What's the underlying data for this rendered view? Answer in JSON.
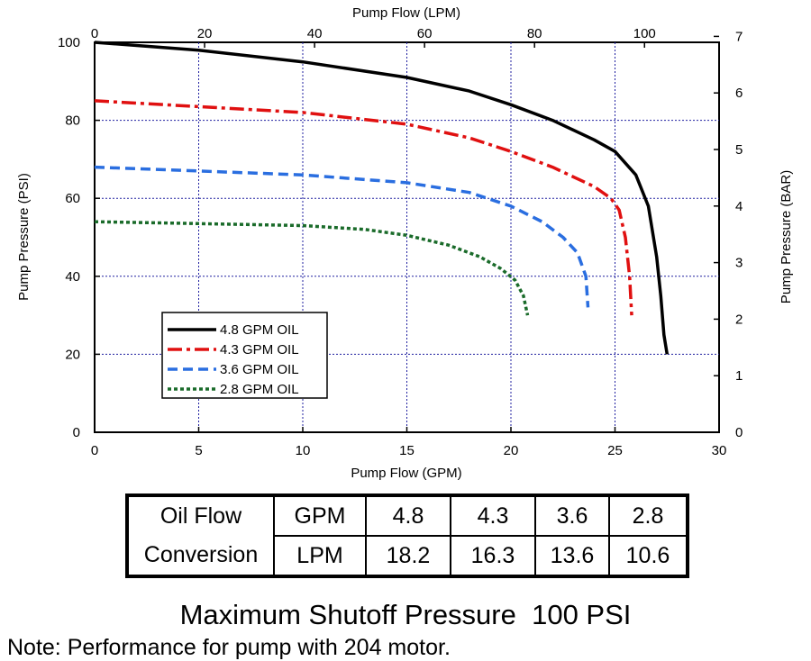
{
  "chart_data": {
    "type": "line",
    "xlabel": "Pump Flow (GPM)",
    "ylabel": "Pump Pressure (PSI)",
    "x2label": "Pump Flow (LPM)",
    "y2label": "Pump Pressure (BAR)",
    "xlim": [
      0,
      30
    ],
    "ylim": [
      0,
      100
    ],
    "x2lim": [
      0,
      113.56
    ],
    "y2lim": [
      0,
      6.895
    ],
    "x_ticks": [
      "0",
      "5",
      "10",
      "15",
      "20",
      "25",
      "30"
    ],
    "y_ticks": [
      "0",
      "20",
      "40",
      "60",
      "80",
      "100"
    ],
    "x2_ticks": [
      "0",
      "20",
      "40",
      "60",
      "80",
      "100"
    ],
    "y2_ticks": [
      "0",
      "1",
      "2",
      "3",
      "4",
      "5",
      "6",
      "7"
    ],
    "grid": true,
    "legend_position": "lower-left",
    "series": [
      {
        "name": "4.8 GPM OIL",
        "color": "#000000",
        "dash": "solid",
        "x": [
          0,
          5,
          10,
          15,
          18,
          20,
          22,
          24,
          25,
          26,
          26.6,
          27.0,
          27.2,
          27.35,
          27.5
        ],
        "y": [
          100,
          98,
          95,
          91,
          87.5,
          84,
          80,
          75,
          72,
          66,
          58,
          45,
          35,
          25,
          20
        ]
      },
      {
        "name": "4.3 GPM OIL",
        "color": "#e01010",
        "dash": "dashdot",
        "x": [
          0,
          5,
          10,
          15,
          18,
          20,
          22,
          24,
          24.8,
          25.2,
          25.5,
          25.7,
          25.8
        ],
        "y": [
          85,
          83.5,
          82,
          79,
          75.5,
          72,
          68,
          63,
          60,
          57,
          50,
          40,
          30
        ]
      },
      {
        "name": "3.6 GPM OIL",
        "color": "#2a6ee0",
        "dash": "dash",
        "x": [
          0,
          5,
          10,
          15,
          18,
          20,
          21.5,
          22.5,
          23.2,
          23.6,
          23.7
        ],
        "y": [
          68,
          67,
          66,
          64,
          61.5,
          58,
          54,
          50,
          46,
          40,
          32
        ]
      },
      {
        "name": "2.8 GPM OIL",
        "color": "#1a6b2a",
        "dash": "dot",
        "x": [
          0,
          5,
          10,
          13,
          15,
          17,
          18.5,
          19.5,
          20.2,
          20.6,
          20.8
        ],
        "y": [
          54,
          53.5,
          53,
          52,
          50.5,
          48,
          45,
          42,
          39,
          35,
          30
        ]
      }
    ]
  },
  "table": {
    "row1": [
      "Oil Flow",
      "GPM",
      "4.8",
      "4.3",
      "3.6",
      "2.8"
    ],
    "row2": [
      "Conversion",
      "LPM",
      "18.2",
      "16.3",
      "13.6",
      "10.6"
    ]
  },
  "notes": {
    "title": "Maximum Shutoff Pressure  100 PSI",
    "text": "Note: Performance for pump with 204 motor."
  }
}
